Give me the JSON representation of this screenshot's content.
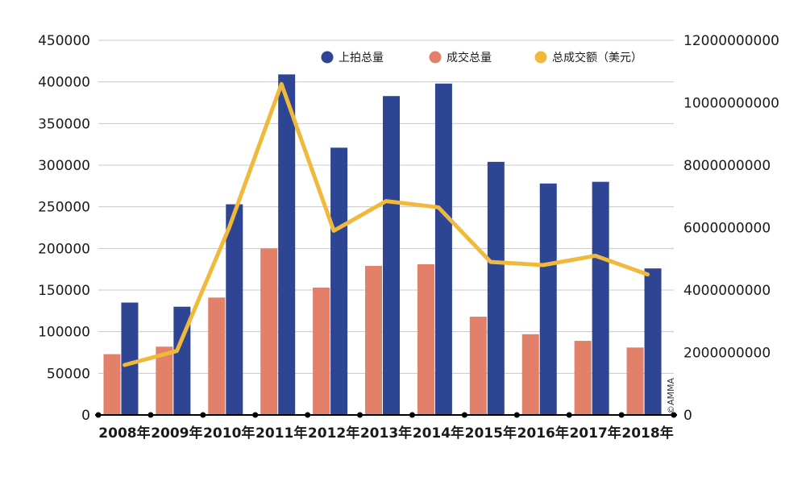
{
  "chart_data": {
    "type": "bar",
    "categories": [
      "2008年",
      "2009年",
      "2010年",
      "2011年",
      "2012年",
      "2013年",
      "2014年",
      "2015年",
      "2016年",
      "2017年",
      "2018年"
    ],
    "series": [
      {
        "name": "上拍总量",
        "kind": "bar",
        "axis": "left",
        "color": "#2e4593",
        "values": [
          135000,
          130000,
          253000,
          409000,
          321000,
          383000,
          398000,
          304000,
          278000,
          280000,
          176000
        ]
      },
      {
        "name": "成交总量",
        "kind": "bar",
        "axis": "left",
        "color": "#e2806a",
        "values": [
          73000,
          82000,
          141000,
          200000,
          153000,
          179000,
          181000,
          118000,
          97000,
          89000,
          81000
        ]
      },
      {
        "name": "总成交额（美元）",
        "kind": "line",
        "axis": "right",
        "color": "#f0b93c",
        "values": [
          1600000000,
          2050000000,
          6000000000,
          10600000000,
          5900000000,
          6850000000,
          6650000000,
          4900000000,
          4800000000,
          5100000000,
          4500000000
        ]
      }
    ],
    "y_left": {
      "ylim": [
        0,
        450000
      ],
      "ticks": [
        "0",
        "50000",
        "100000",
        "150000",
        "200000",
        "250000",
        "300000",
        "350000",
        "400000",
        "450000"
      ]
    },
    "y_right": {
      "ylim": [
        0,
        12000000000
      ],
      "ticks": [
        "0",
        "2000000000",
        "4000000000",
        "6000000000",
        "8000000000",
        "10000000000",
        "12000000000"
      ]
    },
    "grid": true,
    "legend_position": "top-right",
    "watermark": "©AMMA"
  }
}
